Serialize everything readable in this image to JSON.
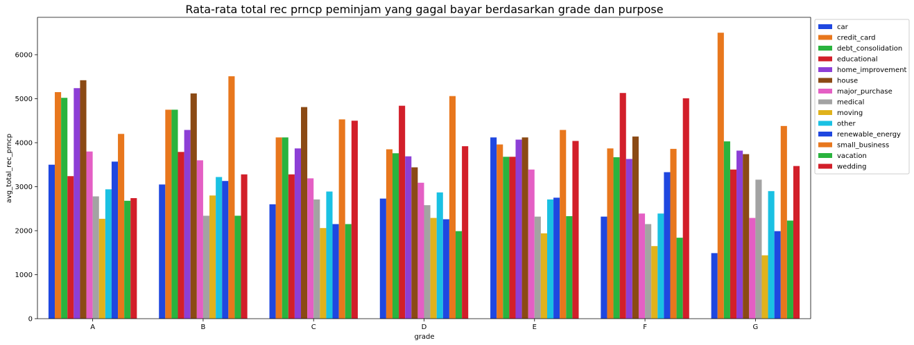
{
  "chart_data": {
    "type": "bar",
    "title": "Rata-rata total rec prncp peminjam yang gagal bayar berdasarkan grade dan purpose",
    "xlabel": "grade",
    "ylabel": "avg_total_rec_prncp",
    "categories": [
      "A",
      "B",
      "C",
      "D",
      "E",
      "F",
      "G"
    ],
    "ylim": [
      0,
      6850
    ],
    "yticks": [
      0,
      1000,
      2000,
      3000,
      4000,
      5000,
      6000
    ],
    "legend_position": "outside-top-right",
    "grid": false,
    "series": [
      {
        "name": "car",
        "color": "#1f47e0",
        "values": [
          3500,
          3050,
          2600,
          2730,
          4120,
          2320,
          1490
        ]
      },
      {
        "name": "credit_card",
        "color": "#e8771d",
        "values": [
          5150,
          4750,
          4120,
          3850,
          3960,
          3870,
          6500
        ]
      },
      {
        "name": "debt_consolidation",
        "color": "#2ab33e",
        "values": [
          5020,
          4750,
          4120,
          3760,
          3680,
          3670,
          4030
        ]
      },
      {
        "name": "educational",
        "color": "#d21f2a",
        "values": [
          3240,
          3790,
          3280,
          4840,
          3680,
          5130,
          3390
        ]
      },
      {
        "name": "home_improvement",
        "color": "#8c3fd6",
        "values": [
          5240,
          4290,
          3870,
          3690,
          4070,
          3630,
          3820
        ]
      },
      {
        "name": "house",
        "color": "#8b4a14",
        "values": [
          5420,
          5120,
          4810,
          3440,
          4120,
          4140,
          3740
        ]
      },
      {
        "name": "major_purchase",
        "color": "#e45fc4",
        "values": [
          3800,
          3600,
          3190,
          3090,
          3390,
          2390,
          2290
        ]
      },
      {
        "name": "medical",
        "color": "#a3a3a3",
        "values": [
          2780,
          2340,
          2710,
          2580,
          2320,
          2150,
          3160
        ]
      },
      {
        "name": "moving",
        "color": "#e0b21b",
        "values": [
          2270,
          2800,
          2060,
          2290,
          1940,
          1650,
          1440
        ]
      },
      {
        "name": "other",
        "color": "#1ac1e3",
        "values": [
          2940,
          3220,
          2890,
          2870,
          2710,
          2390,
          2900
        ]
      },
      {
        "name": "renewable_energy",
        "color": "#1f47e0",
        "values": [
          3570,
          3130,
          2150,
          2260,
          2750,
          3330,
          1990
        ]
      },
      {
        "name": "small_business",
        "color": "#e8771d",
        "values": [
          4200,
          5510,
          4530,
          5060,
          4290,
          3860,
          4380
        ]
      },
      {
        "name": "vacation",
        "color": "#2ab33e",
        "values": [
          2680,
          2340,
          2150,
          1990,
          2330,
          1840,
          2230
        ]
      },
      {
        "name": "wedding",
        "color": "#d21f2a",
        "values": [
          2740,
          3280,
          4500,
          3920,
          4040,
          5010,
          3470
        ]
      }
    ]
  }
}
